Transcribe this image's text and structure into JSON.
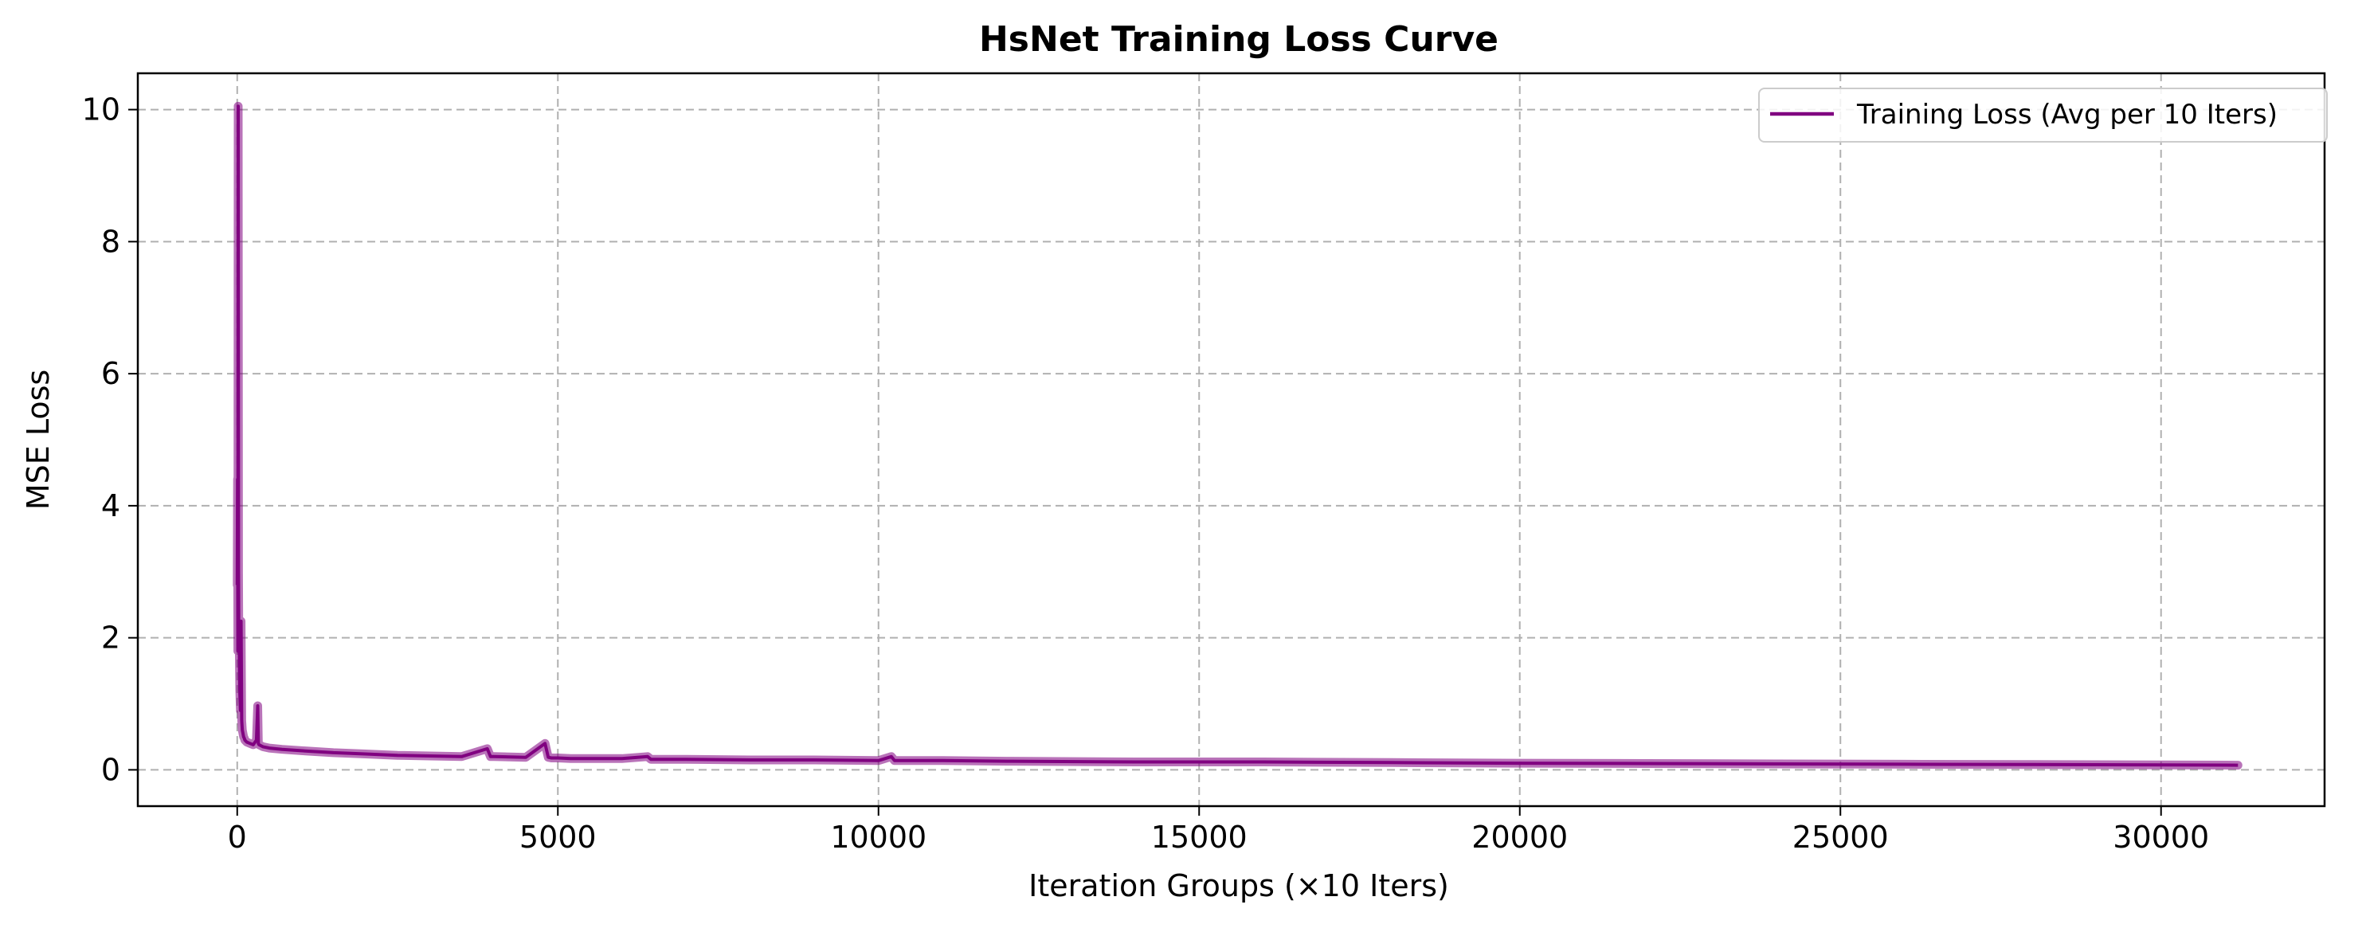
{
  "chart_data": {
    "type": "line",
    "title": "HsNet Training Loss Curve",
    "xlabel": "Iteration Groups (×10 Iters)",
    "ylabel": "MSE Loss",
    "xlim": [
      -1550,
      32550
    ],
    "ylim": [
      -0.55,
      10.55
    ],
    "xticks": [
      0,
      5000,
      10000,
      15000,
      20000,
      25000,
      30000
    ],
    "yticks": [
      0,
      2,
      4,
      6,
      8,
      10
    ],
    "grid": true,
    "legend_position": "top-right",
    "series": [
      {
        "name": "Training Loss (Avg per 10 Iters)",
        "color": "#800080",
        "x": [
          0,
          5,
          10,
          15,
          20,
          25,
          30,
          35,
          40,
          50,
          60,
          70,
          80,
          90,
          100,
          110,
          120,
          150,
          200,
          250,
          300,
          320,
          330,
          340,
          400,
          500,
          700,
          1000,
          1500,
          2000,
          2500,
          3000,
          3500,
          3900,
          3950,
          4000,
          4500,
          4800,
          4850,
          4900,
          5000,
          5200,
          6000,
          6400,
          6450,
          7000,
          8000,
          9000,
          10000,
          10200,
          10250,
          11000,
          12000,
          14000,
          16000,
          18000,
          20000,
          22000,
          24000,
          26000,
          28000,
          30000,
          31200
        ],
        "y": [
          2.8,
          4.4,
          1.8,
          10.05,
          3.0,
          1.9,
          2.25,
          1.6,
          1.2,
          0.9,
          2.25,
          0.75,
          0.6,
          0.55,
          0.5,
          0.48,
          0.45,
          0.42,
          0.4,
          0.38,
          0.45,
          0.97,
          0.4,
          0.38,
          0.35,
          0.33,
          0.31,
          0.29,
          0.26,
          0.24,
          0.22,
          0.21,
          0.2,
          0.32,
          0.2,
          0.2,
          0.19,
          0.4,
          0.19,
          0.18,
          0.18,
          0.17,
          0.17,
          0.2,
          0.16,
          0.16,
          0.15,
          0.15,
          0.14,
          0.2,
          0.14,
          0.14,
          0.13,
          0.12,
          0.12,
          0.11,
          0.1,
          0.095,
          0.09,
          0.085,
          0.08,
          0.075,
          0.07
        ]
      }
    ]
  }
}
